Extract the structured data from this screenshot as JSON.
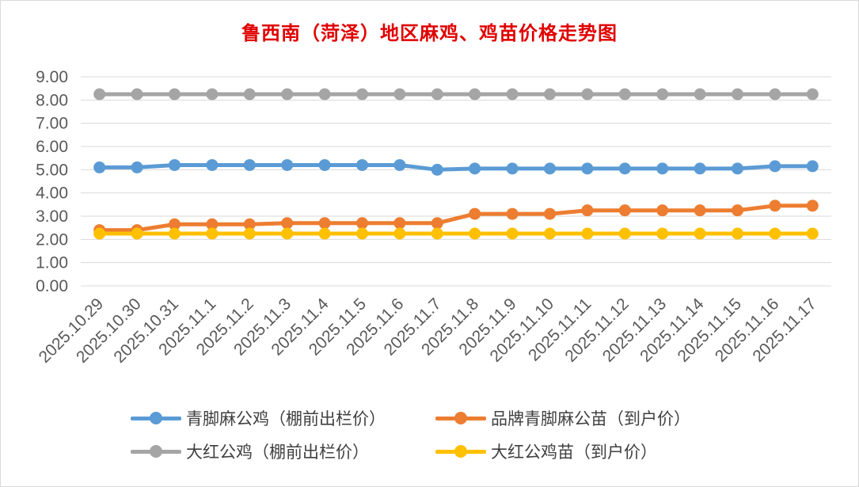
{
  "chart_data": {
    "type": "line",
    "title": "鲁西南（菏泽）地区麻鸡、鸡苗价格走势图",
    "categories": [
      "2025.10.29",
      "2025.10.30",
      "2025.10.31",
      "2025.11.1",
      "2025.11.2",
      "2025.11.3",
      "2025.11.4",
      "2025.11.5",
      "2025.11.6",
      "2025.11.7",
      "2025.11.8",
      "2025.11.9",
      "2025.11.10",
      "2025.11.11",
      "2025.11.12",
      "2025.11.13",
      "2025.11.14",
      "2025.11.15",
      "2025.11.16",
      "2025.11.17"
    ],
    "ylim": [
      0,
      9
    ],
    "yticks": [
      "0.00",
      "1.00",
      "2.00",
      "3.00",
      "4.00",
      "5.00",
      "6.00",
      "7.00",
      "8.00",
      "9.00"
    ],
    "grid": true,
    "legend_position": "bottom",
    "series": [
      {
        "name": "青脚麻公鸡（棚前出栏价）",
        "color": "#5b9bd5",
        "values": [
          5.1,
          5.1,
          5.2,
          5.2,
          5.2,
          5.2,
          5.2,
          5.2,
          5.2,
          5.0,
          5.05,
          5.05,
          5.05,
          5.05,
          5.05,
          5.05,
          5.05,
          5.05,
          5.15,
          5.15
        ]
      },
      {
        "name": "品牌青脚麻公苗（到户价）",
        "color": "#ed7d31",
        "values": [
          2.4,
          2.4,
          2.65,
          2.65,
          2.65,
          2.7,
          2.7,
          2.7,
          2.7,
          2.7,
          3.1,
          3.1,
          3.1,
          3.25,
          3.25,
          3.25,
          3.25,
          3.25,
          3.45,
          3.45
        ]
      },
      {
        "name": "大红公鸡（棚前出栏价）",
        "color": "#a5a5a5",
        "values": [
          8.25,
          8.25,
          8.25,
          8.25,
          8.25,
          8.25,
          8.25,
          8.25,
          8.25,
          8.25,
          8.25,
          8.25,
          8.25,
          8.25,
          8.25,
          8.25,
          8.25,
          8.25,
          8.25,
          8.25
        ]
      },
      {
        "name": "大红公鸡苗（到户价）",
        "color": "#ffc000",
        "values": [
          2.25,
          2.25,
          2.25,
          2.25,
          2.25,
          2.25,
          2.25,
          2.25,
          2.25,
          2.25,
          2.25,
          2.25,
          2.25,
          2.25,
          2.25,
          2.25,
          2.25,
          2.25,
          2.25,
          2.25
        ]
      }
    ]
  }
}
